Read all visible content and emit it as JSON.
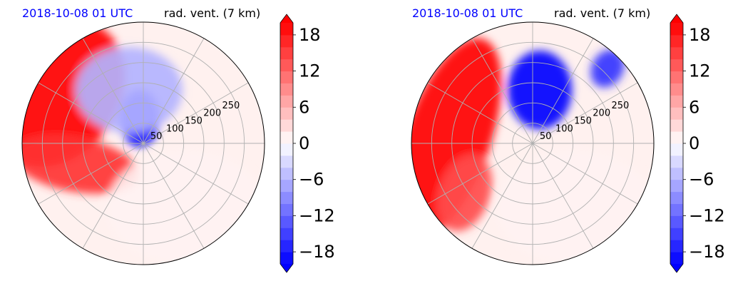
{
  "chart_data": [
    {
      "type": "polar-filled-contour",
      "title_left": "2018-10-08 01 UTC",
      "title_right": "rad. vent. (7 km)",
      "radial_ticks": [
        50,
        100,
        150,
        200,
        250
      ],
      "radial_limit": 300,
      "angular_gridlines_deg": [
        0,
        30,
        60,
        90,
        120,
        150,
        180,
        210,
        240,
        270,
        300,
        330
      ],
      "grid": true,
      "colorbar": {
        "ticks": [
          "18",
          "12",
          "6",
          "0",
          "−6",
          "−12",
          "−18"
        ],
        "tick_values": [
          18,
          12,
          6,
          0,
          -6,
          -12,
          -18
        ],
        "vmin": -20,
        "vmax": 20,
        "extend": "both",
        "colormap": "bwr",
        "low_color": "#0000ff",
        "mid_color": "#ffffff",
        "high_color": "#ff0000"
      },
      "regions": [
        {
          "sign": "positive",
          "magnitude": 20,
          "location": "west and northwest outer ring"
        },
        {
          "sign": "positive",
          "magnitude": 16,
          "location": "west-southwest band"
        },
        {
          "sign": "negative",
          "magnitude": 20,
          "location": "north-northeast, near center"
        },
        {
          "sign": "negative",
          "magnitude": 6,
          "location": "north, broad patches"
        },
        {
          "sign": "near-zero",
          "magnitude": 1,
          "location": "south and east"
        }
      ]
    },
    {
      "type": "polar-filled-contour",
      "title_left": "2018-10-08 01 UTC",
      "title_right": "rad. vent. (7 km)",
      "radial_ticks": [
        50,
        100,
        150,
        200,
        250
      ],
      "radial_limit": 300,
      "angular_gridlines_deg": [
        0,
        30,
        60,
        90,
        120,
        150,
        180,
        210,
        240,
        270,
        300,
        330
      ],
      "grid": true,
      "colorbar": {
        "ticks": [
          "18",
          "12",
          "6",
          "0",
          "−6",
          "−12",
          "−18"
        ],
        "tick_values": [
          18,
          12,
          6,
          0,
          -6,
          -12,
          -18
        ],
        "vmin": -20,
        "vmax": 20,
        "extend": "both",
        "colormap": "bwr",
        "low_color": "#0000ff",
        "mid_color": "#ffffff",
        "high_color": "#ff0000"
      },
      "regions": [
        {
          "sign": "positive",
          "magnitude": 20,
          "location": "west, broad crescent"
        },
        {
          "sign": "positive",
          "magnitude": 14,
          "location": "southwest lobe"
        },
        {
          "sign": "negative",
          "magnitude": 20,
          "location": "north-northeast, near center"
        },
        {
          "sign": "negative",
          "magnitude": 16,
          "location": "northeast outer patch"
        },
        {
          "sign": "near-zero",
          "magnitude": 1,
          "location": "south and east"
        }
      ]
    }
  ]
}
